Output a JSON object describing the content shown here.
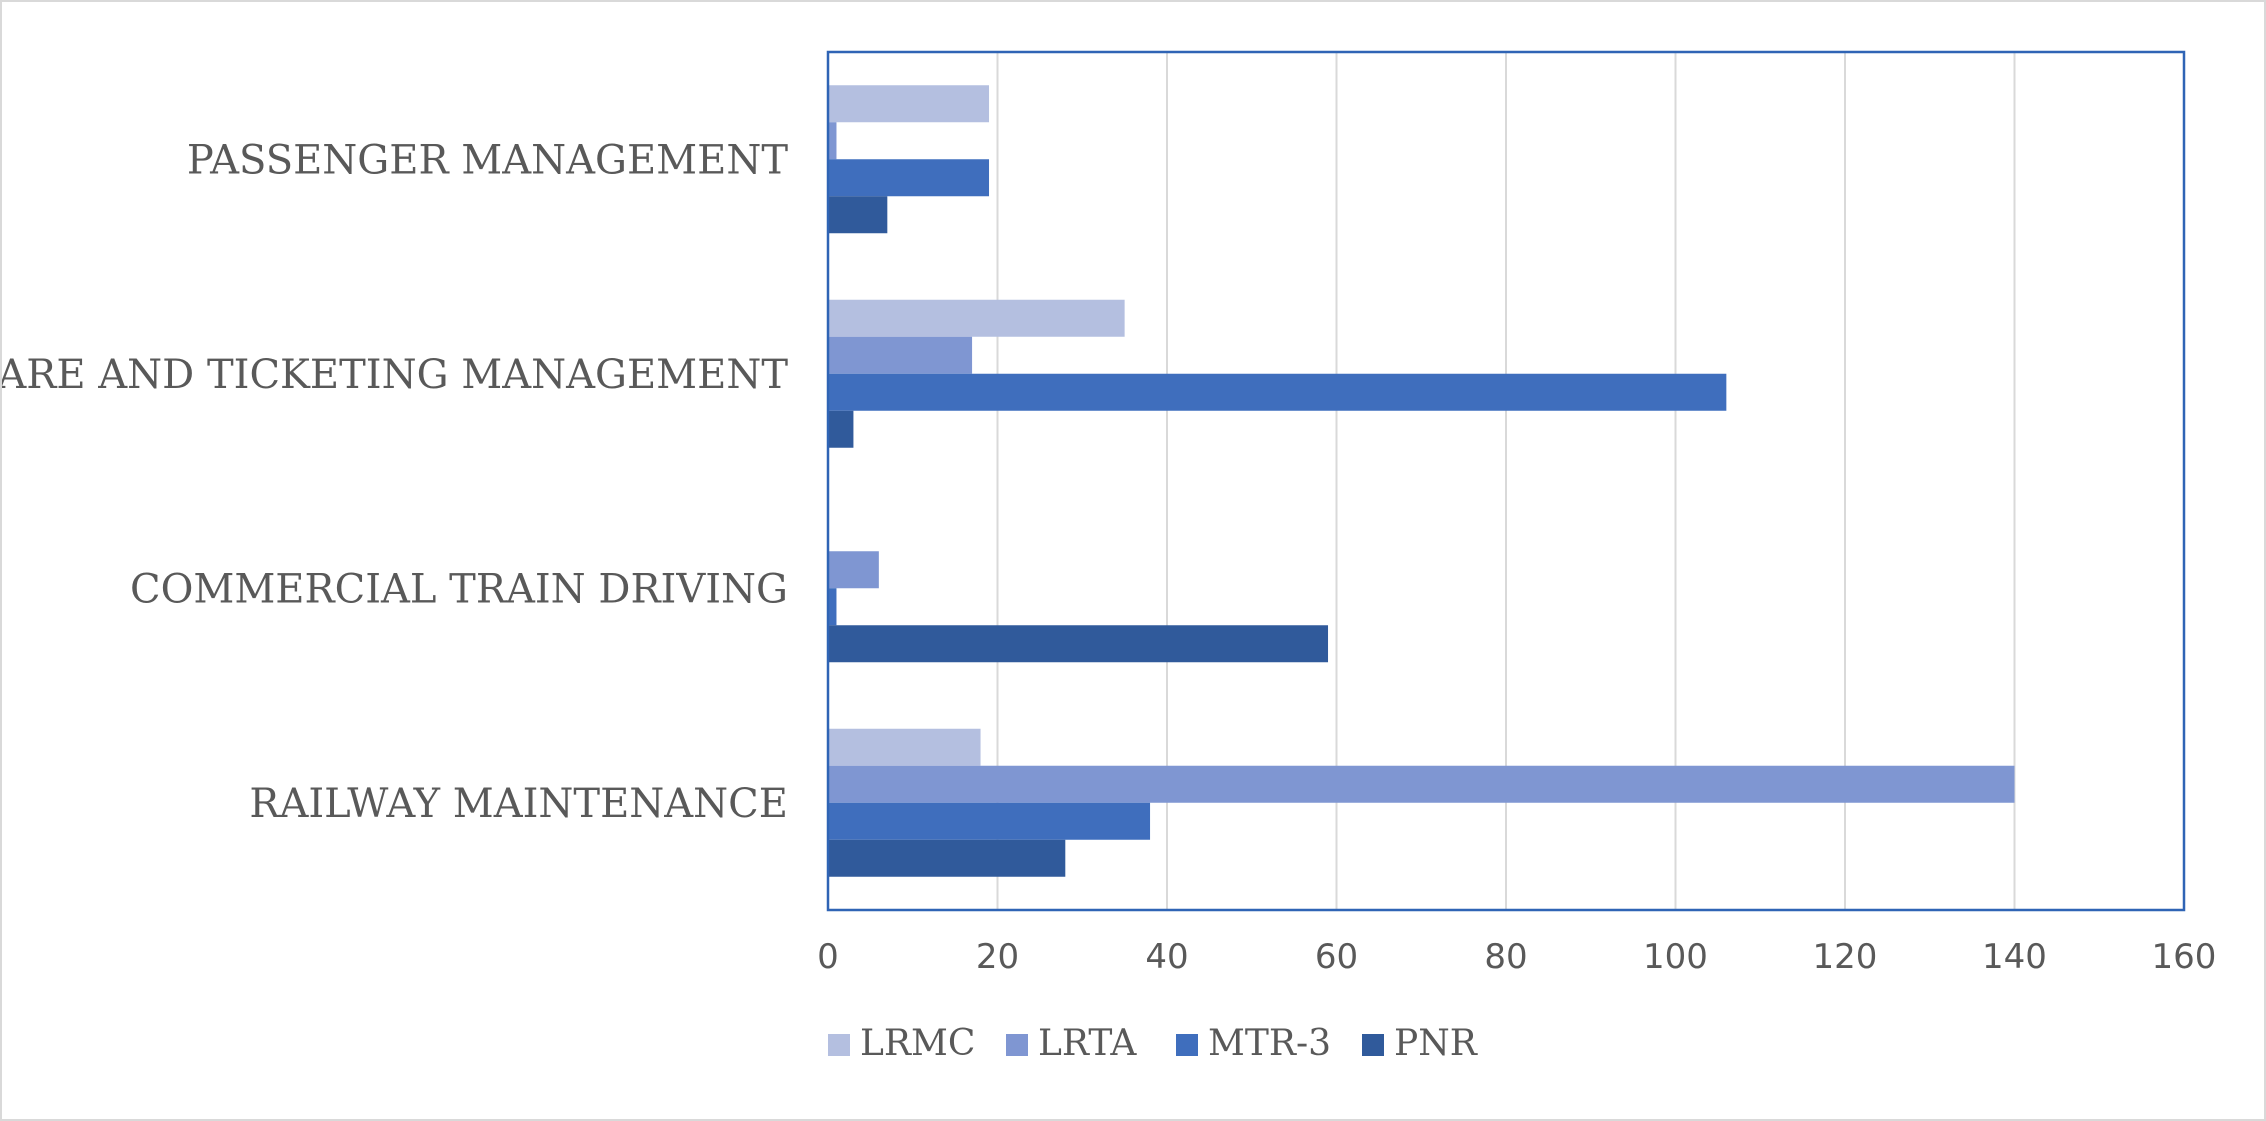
{
  "chart_data": {
    "type": "bar",
    "orientation": "horizontal",
    "categories": [
      "RAILWAY MAINTENANCE",
      "COMMERCIAL TRAIN DRIVING",
      "FARE AND TICKETING MANAGEMENT",
      "PASSENGER MANAGEMENT"
    ],
    "series": [
      {
        "name": "LRMC",
        "color": "#b4bfe0",
        "values": [
          18,
          0,
          35,
          19
        ]
      },
      {
        "name": "LRTA",
        "color": "#7f96d2",
        "values": [
          140,
          6,
          17,
          1
        ]
      },
      {
        "name": "MTR-3",
        "color": "#3f6ebd",
        "values": [
          38,
          1,
          106,
          19
        ]
      },
      {
        "name": "PNR",
        "color": "#305a9b",
        "values": [
          28,
          59,
          3,
          7
        ]
      }
    ],
    "xlim": [
      0,
      160
    ],
    "xticks": [
      0,
      20,
      40,
      60,
      80,
      100,
      120,
      140,
      160
    ],
    "grid": true,
    "legend_position": "bottom",
    "plot_border_color": "#2f64b5",
    "gridline_color": "#d9d9d9"
  }
}
